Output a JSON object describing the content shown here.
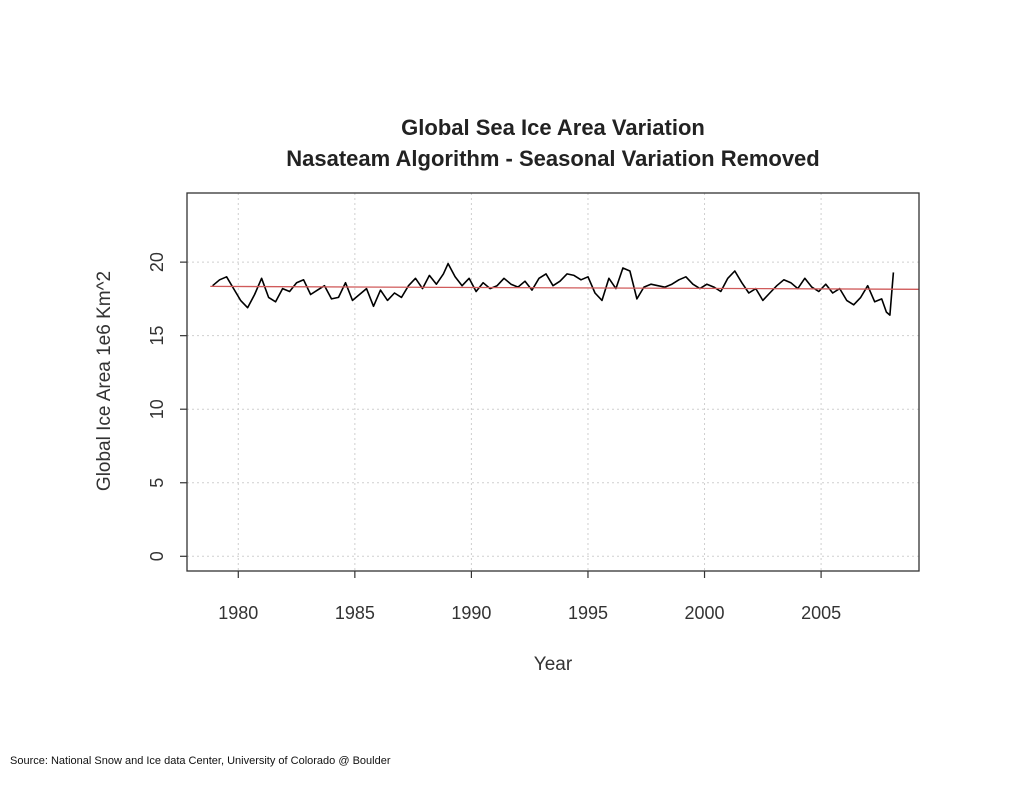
{
  "chart_data": {
    "type": "line",
    "title": "Global Sea Ice Area Variation",
    "subtitle": "Nasateam Algorithm - Seasonal Variation Removed",
    "xlabel": "Year",
    "ylabel": "Global Ice Area 1e6 Km^2",
    "xlim": [
      1977.8,
      2009.2
    ],
    "ylim": [
      -1,
      24.7
    ],
    "x_ticks": [
      1980,
      1985,
      1990,
      1995,
      2000,
      2005
    ],
    "y_ticks": [
      0,
      5,
      10,
      15,
      20
    ],
    "grid": true,
    "series": [
      {
        "color": "#000000",
        "x": [
          1978.9,
          1979.2,
          1979.5,
          1979.8,
          1980.1,
          1980.4,
          1980.7,
          1981.0,
          1981.3,
          1981.6,
          1981.9,
          1982.2,
          1982.5,
          1982.8,
          1983.1,
          1983.4,
          1983.7,
          1984.0,
          1984.3,
          1984.6,
          1984.9,
          1985.2,
          1985.5,
          1985.8,
          1986.1,
          1986.4,
          1986.7,
          1987.0,
          1987.3,
          1987.6,
          1987.9,
          1988.2,
          1988.5,
          1988.8,
          1989.0,
          1989.3,
          1989.6,
          1989.9,
          1990.2,
          1990.5,
          1990.8,
          1991.1,
          1991.4,
          1991.7,
          1992.0,
          1992.3,
          1992.6,
          1992.9,
          1993.2,
          1993.5,
          1993.8,
          1994.1,
          1994.4,
          1994.7,
          1995.0,
          1995.3,
          1995.6,
          1995.9,
          1996.2,
          1996.5,
          1996.8,
          1997.1,
          1997.4,
          1997.7,
          1998.0,
          1998.3,
          1998.6,
          1998.9,
          1999.2,
          1999.5,
          1999.8,
          2000.1,
          2000.4,
          2000.7,
          2001.0,
          2001.3,
          2001.6,
          2001.9,
          2002.2,
          2002.5,
          2002.8,
          2003.1,
          2003.4,
          2003.7,
          2004.0,
          2004.3,
          2004.6,
          2004.9,
          2005.2,
          2005.5,
          2005.8,
          2006.1,
          2006.4,
          2006.7,
          2007.0,
          2007.3,
          2007.6,
          2007.8,
          2007.95,
          2008.1
        ],
        "values": [
          18.4,
          18.8,
          19.0,
          18.2,
          17.4,
          16.9,
          17.8,
          18.9,
          17.6,
          17.3,
          18.2,
          18.0,
          18.6,
          18.8,
          17.8,
          18.1,
          18.4,
          17.5,
          17.6,
          18.6,
          17.4,
          17.8,
          18.2,
          17.0,
          18.1,
          17.4,
          17.9,
          17.6,
          18.4,
          18.9,
          18.2,
          19.1,
          18.5,
          19.2,
          19.9,
          19.0,
          18.4,
          18.9,
          18.0,
          18.6,
          18.2,
          18.4,
          18.9,
          18.5,
          18.3,
          18.7,
          18.1,
          18.9,
          19.2,
          18.4,
          18.7,
          19.2,
          19.1,
          18.8,
          19.0,
          17.9,
          17.4,
          18.9,
          18.2,
          19.6,
          19.4,
          17.5,
          18.3,
          18.5,
          18.4,
          18.3,
          18.5,
          18.8,
          19.0,
          18.5,
          18.2,
          18.5,
          18.3,
          18.0,
          18.9,
          19.4,
          18.6,
          17.9,
          18.2,
          17.4,
          17.9,
          18.4,
          18.8,
          18.6,
          18.2,
          18.9,
          18.3,
          18.0,
          18.5,
          17.9,
          18.2,
          17.4,
          17.1,
          17.6,
          18.4,
          17.3,
          17.5,
          16.6,
          16.4,
          19.3
        ]
      },
      {
        "color": "#d05a5a",
        "x": [
          1978.8,
          2009.2
        ],
        "values": [
          18.35,
          18.15
        ]
      }
    ]
  },
  "source_note": "Source: National Snow and Ice data Center, University of Colorado @ Boulder"
}
